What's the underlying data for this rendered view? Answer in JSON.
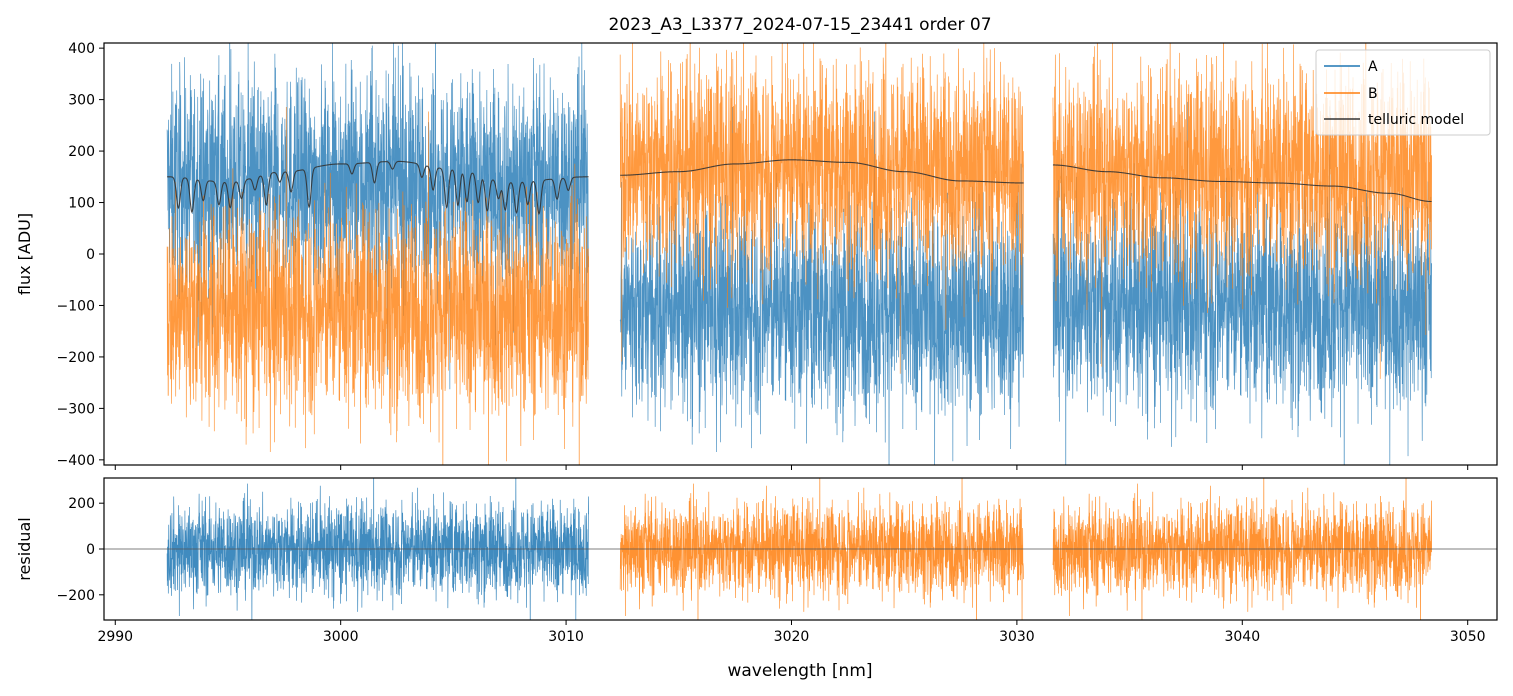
{
  "chart_data": [
    {
      "panel": "main",
      "type": "line",
      "title": "2023_A3_L3377_2024-07-15_23441  order 07",
      "xlabel": "",
      "ylabel": "flux [ADU]",
      "xlim": [
        2989.5,
        3051.3
      ],
      "ylim": [
        -410,
        410
      ],
      "yticks": [
        -400,
        -300,
        -200,
        -100,
        0,
        100,
        200,
        300,
        400
      ],
      "ytick_labels": [
        "−400",
        "−300",
        "−200",
        "−100",
        "0",
        "100",
        "200",
        "300",
        "400"
      ],
      "xticks": [
        2990,
        3000,
        3010,
        3020,
        3030,
        3040,
        3050
      ],
      "show_xtick_labels": false,
      "legend": {
        "placement": "top-right",
        "entries": [
          "A",
          "B",
          "telluric model"
        ]
      },
      "segments": [
        {
          "x_range": [
            2992.3,
            3011.0
          ],
          "A_mean": 140,
          "B_mean": -110,
          "noise": 100
        },
        {
          "x_range": [
            3012.4,
            3030.3
          ],
          "A_mean": -110,
          "B_mean": 170,
          "noise": 100
        },
        {
          "x_range": [
            3031.6,
            3048.4
          ],
          "A_mean": -100,
          "B_mean": 160,
          "noise": 100
        }
      ],
      "series": [
        {
          "name": "A",
          "color": "#1f77b4",
          "description": "noisy spectrum, high in first segment, low in segments 2-3"
        },
        {
          "name": "B",
          "color": "#ff7f0e",
          "description": "noisy spectrum, low in first segment, high in segments 2-3"
        },
        {
          "name": "telluric model",
          "color": "#333333",
          "points": [
            {
              "segment": 1,
              "x": [
                2992.3,
                2995,
                2997.5,
                3000,
                3002.5,
                3005,
                3007.5,
                3011.0
              ],
              "y": [
                150,
                140,
                160,
                175,
                180,
                165,
                140,
                150
              ],
              "absorption_lines": [
                {
                  "x": 2992.8,
                  "depth": 60
                },
                {
                  "x": 2993.4,
                  "depth": 65
                },
                {
                  "x": 2993.9,
                  "depth": 40
                },
                {
                  "x": 2994.6,
                  "depth": 45
                },
                {
                  "x": 2995.1,
                  "depth": 50
                },
                {
                  "x": 2995.6,
                  "depth": 35
                },
                {
                  "x": 2996.2,
                  "depth": 25
                },
                {
                  "x": 2996.7,
                  "depth": 60
                },
                {
                  "x": 2997.3,
                  "depth": 20
                },
                {
                  "x": 2997.8,
                  "depth": 40
                },
                {
                  "x": 2998.6,
                  "depth": 75
                },
                {
                  "x": 3000.5,
                  "depth": 20
                },
                {
                  "x": 3001.5,
                  "depth": 40
                },
                {
                  "x": 3002.3,
                  "depth": 15
                },
                {
                  "x": 3003.6,
                  "depth": 25
                },
                {
                  "x": 3004.1,
                  "depth": 45
                },
                {
                  "x": 3004.7,
                  "depth": 75
                },
                {
                  "x": 3005.2,
                  "depth": 70
                },
                {
                  "x": 3005.6,
                  "depth": 60
                },
                {
                  "x": 3006.1,
                  "depth": 55
                },
                {
                  "x": 3006.5,
                  "depth": 65
                },
                {
                  "x": 3007.0,
                  "depth": 35
                },
                {
                  "x": 3007.3,
                  "depth": 55
                },
                {
                  "x": 3007.8,
                  "depth": 60
                },
                {
                  "x": 3008.3,
                  "depth": 45
                },
                {
                  "x": 3008.8,
                  "depth": 65
                },
                {
                  "x": 3009.6,
                  "depth": 40
                },
                {
                  "x": 3010.1,
                  "depth": 25
                }
              ]
            },
            {
              "segment": 2,
              "x": [
                3012.4,
                3015,
                3017.5,
                3020,
                3022.5,
                3025,
                3027.5,
                3030.3
              ],
              "y": [
                153,
                160,
                175,
                183,
                178,
                160,
                142,
                138
              ]
            },
            {
              "segment": 3,
              "x": [
                3031.6,
                3034,
                3036.5,
                3039,
                3041.5,
                3044,
                3046.5,
                3048.4
              ],
              "y": [
                173,
                160,
                148,
                141,
                138,
                132,
                118,
                102
              ]
            }
          ]
        }
      ]
    },
    {
      "panel": "residual",
      "type": "line",
      "title": "",
      "xlabel": "wavelength [nm]",
      "ylabel": "residual",
      "xlim": [
        2989.5,
        3051.3
      ],
      "ylim": [
        -310,
        310
      ],
      "yticks": [
        -200,
        0,
        200
      ],
      "ytick_labels": [
        "−200",
        "0",
        "200"
      ],
      "xticks": [
        2990,
        3000,
        3010,
        3020,
        3030,
        3040,
        3050
      ],
      "xtick_labels": [
        "2990",
        "3000",
        "3010",
        "3020",
        "3030",
        "3040",
        "3050"
      ],
      "zero_line": 0,
      "segments": [
        {
          "x_range": [
            2992.3,
            3011.0
          ],
          "series": "A",
          "color": "#1f77b4",
          "noise": 100
        },
        {
          "x_range": [
            3012.4,
            3030.3
          ],
          "series": "B",
          "color": "#ff7f0e",
          "noise": 100
        },
        {
          "x_range": [
            3031.6,
            3048.4
          ],
          "series": "B",
          "color": "#ff7f0e",
          "noise": 100
        }
      ]
    }
  ]
}
